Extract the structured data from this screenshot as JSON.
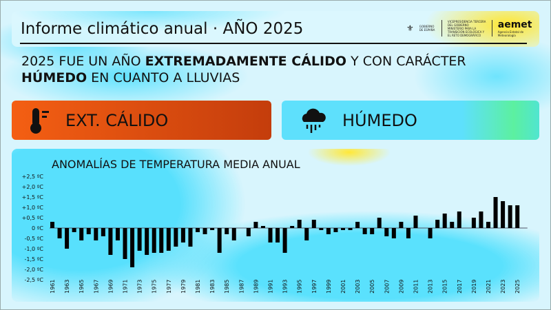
{
  "header": {
    "title": "Informe climático anual · AÑO 2025",
    "logos": {
      "gov": "GOBIERNO DE ESPAÑA",
      "ministry_line1": "VICEPRESIDENCIA TERCERA DEL GOBIERNO",
      "ministry_line2": "MINISTERIO PARA LA TRANSICIÓN ECOLÓGICA Y EL RETO DEMOGRÁFICO",
      "aemet": "aemet",
      "aemet_sub": "Agencia Estatal de Meteorología"
    }
  },
  "headline": {
    "p1": "2025 FUE UN AÑO ",
    "b1": "EXTREMADAMENTE CÁLIDO",
    "p2": " Y CON CARÁCTER ",
    "b2": "HÚMEDO",
    "p3": " EN CUANTO A LLUVIAS"
  },
  "cards": [
    {
      "label": "EXT. CÁLIDO",
      "icon": "thermometer-icon",
      "color": "#f15a13"
    },
    {
      "label": "HÚMEDO",
      "icon": "rain-cloud-icon",
      "color": "#5ee0fc"
    }
  ],
  "chart_data": {
    "type": "bar",
    "title": "ANOMALÍAS DE TEMPERATURA MEDIA ANUAL",
    "ylim": [
      -2.5,
      2.5
    ],
    "yticks": [
      "+2,5 ºC",
      "+2,0 ºC",
      "+1,5 ºC",
      "+1,0 ºC",
      "+0,5 ºC",
      "0 ºC",
      "-0,5 ºC",
      "-1,0 ºC",
      "-1,5 ºC",
      "-2,0 ºC",
      "-2,5 ºC"
    ],
    "start_year": 1961,
    "xtick_labels": [
      "1961",
      "1963",
      "1965",
      "1967",
      "1969",
      "1971",
      "1973",
      "1975",
      "1977",
      "1979",
      "1981",
      "1983",
      "1985",
      "1987",
      "1989",
      "1991",
      "1993",
      "1995",
      "1997",
      "1999",
      "2001",
      "2003",
      "2005",
      "2007",
      "2009",
      "2011",
      "2013",
      "2015",
      "2017",
      "2019",
      "2021",
      "2023",
      "2025"
    ],
    "values": [
      0.3,
      -0.5,
      -1.0,
      -0.2,
      -0.6,
      -0.3,
      -0.6,
      -0.4,
      -1.3,
      -0.6,
      -1.5,
      -1.9,
      -1.1,
      -1.3,
      -1.2,
      -1.2,
      -1.1,
      -0.9,
      -0.7,
      -0.9,
      -0.2,
      -0.3,
      -0.1,
      -1.2,
      -0.3,
      -0.6,
      0.0,
      -0.4,
      0.3,
      0.1,
      -0.7,
      -0.7,
      -1.2,
      0.1,
      0.4,
      -0.6,
      0.4,
      -0.1,
      -0.3,
      -0.2,
      -0.1,
      -0.1,
      0.3,
      -0.3,
      -0.3,
      0.5,
      -0.4,
      -0.5,
      0.3,
      -0.5,
      0.6,
      0.0,
      -0.5,
      0.4,
      0.7,
      0.3,
      0.8,
      0.0,
      0.5,
      0.8,
      0.3,
      1.5,
      1.3,
      1.1,
      1.1
    ],
    "bar_color": "#000000",
    "grid": false
  }
}
